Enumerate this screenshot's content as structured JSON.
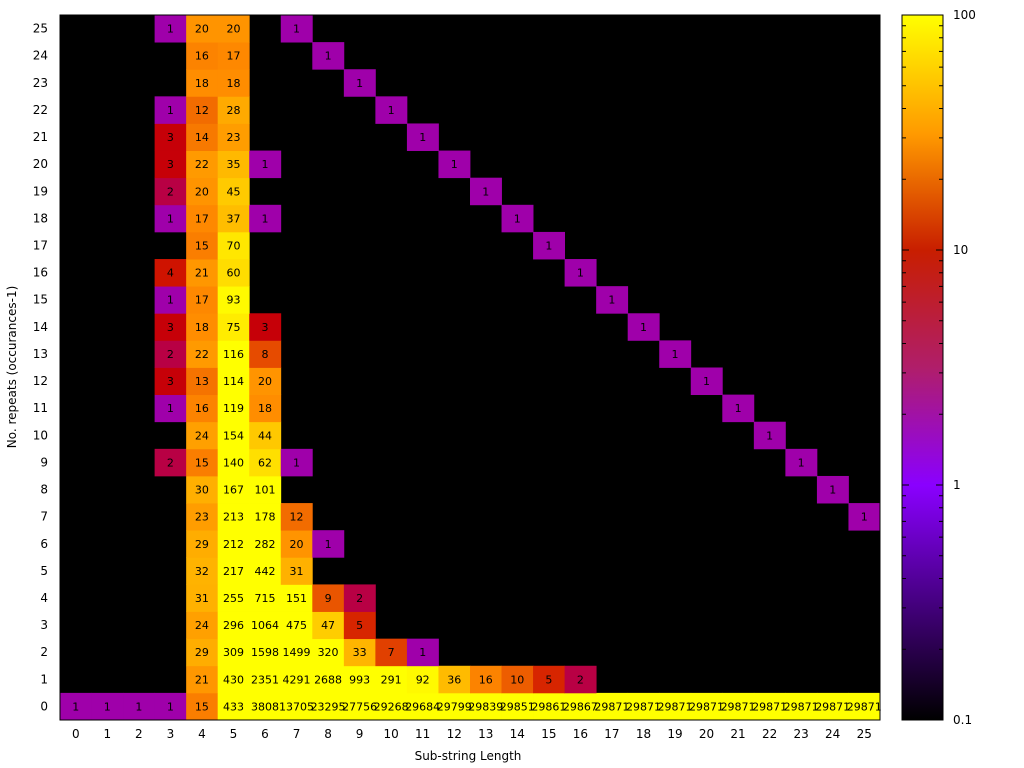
{
  "chart_data": {
    "type": "heatmap",
    "xlabel": "Sub-string Length",
    "ylabel": "No. repeats (occurances-1)",
    "x": [
      0,
      1,
      2,
      3,
      4,
      5,
      6,
      7,
      8,
      9,
      10,
      11,
      12,
      13,
      14,
      15,
      16,
      17,
      18,
      19,
      20,
      21,
      22,
      23,
      24,
      25
    ],
    "y": [
      0,
      1,
      2,
      3,
      4,
      5,
      6,
      7,
      8,
      9,
      10,
      11,
      12,
      13,
      14,
      15,
      16,
      17,
      18,
      19,
      20,
      21,
      22,
      23,
      24,
      25
    ],
    "x_tick_labels": [
      "0",
      "1",
      "2",
      "3",
      "4",
      "5",
      "6",
      "7",
      "8",
      "9",
      "10",
      "11",
      "12",
      "13",
      "14",
      "15",
      "16",
      "17",
      "18",
      "19",
      "20",
      "21",
      "22",
      "23",
      "24",
      "25"
    ],
    "y_tick_labels": [
      "0",
      "1",
      "2",
      "3",
      "4",
      "5",
      "6",
      "7",
      "8",
      "9",
      "10",
      "11",
      "12",
      "13",
      "14",
      "15",
      "16",
      "17",
      "18",
      "19",
      "20",
      "21",
      "22",
      "23",
      "24",
      "25"
    ],
    "color_scale": {
      "type": "log",
      "min": 0.1,
      "max": 100,
      "tick_labels": [
        "0.1",
        "1",
        "10",
        "100"
      ],
      "tick_values": [
        0.1,
        1,
        10,
        100
      ],
      "colors": [
        "#000000",
        "#8a00ff",
        "#c80000",
        "#ff8c00",
        "#ffff00"
      ],
      "empty_color": "#000000"
    },
    "cells": [
      {
        "x": 0,
        "y": 0,
        "label": "1"
      },
      {
        "x": 1,
        "y": 0,
        "label": "1"
      },
      {
        "x": 2,
        "y": 0,
        "label": "1"
      },
      {
        "x": 3,
        "y": 0,
        "label": "1"
      },
      {
        "x": 4,
        "y": 0,
        "label": "15"
      },
      {
        "x": 5,
        "y": 0,
        "label": "433"
      },
      {
        "x": 6,
        "y": 0,
        "label": "3808"
      },
      {
        "x": 7,
        "y": 0,
        "label": "13705"
      },
      {
        "x": 8,
        "y": 0,
        "label": "23295"
      },
      {
        "x": 9,
        "y": 0,
        "label": "27756"
      },
      {
        "x": 10,
        "y": 0,
        "label": "29268"
      },
      {
        "x": 11,
        "y": 0,
        "label": "29684"
      },
      {
        "x": 12,
        "y": 0,
        "label": "29799"
      },
      {
        "x": 13,
        "y": 0,
        "label": "29839"
      },
      {
        "x": 14,
        "y": 0,
        "label": "29851"
      },
      {
        "x": 15,
        "y": 0,
        "label": "29861"
      },
      {
        "x": 16,
        "y": 0,
        "label": "29867"
      },
      {
        "x": 17,
        "y": 0,
        "label": "29871"
      },
      {
        "x": 18,
        "y": 0,
        "label": "29871"
      },
      {
        "x": 19,
        "y": 0,
        "label": "29871"
      },
      {
        "x": 20,
        "y": 0,
        "label": "29871"
      },
      {
        "x": 21,
        "y": 0,
        "label": "29871"
      },
      {
        "x": 22,
        "y": 0,
        "label": "29871"
      },
      {
        "x": 23,
        "y": 0,
        "label": "29871"
      },
      {
        "x": 24,
        "y": 0,
        "label": "29871"
      },
      {
        "x": 25,
        "y": 0,
        "label": "29871"
      },
      {
        "x": 4,
        "y": 1,
        "label": "21"
      },
      {
        "x": 5,
        "y": 1,
        "label": "430"
      },
      {
        "x": 6,
        "y": 1,
        "label": "2351"
      },
      {
        "x": 7,
        "y": 1,
        "label": "4291"
      },
      {
        "x": 8,
        "y": 1,
        "label": "2688"
      },
      {
        "x": 9,
        "y": 1,
        "label": "993"
      },
      {
        "x": 10,
        "y": 1,
        "label": "291"
      },
      {
        "x": 11,
        "y": 1,
        "label": "92"
      },
      {
        "x": 12,
        "y": 1,
        "label": "36"
      },
      {
        "x": 13,
        "y": 1,
        "label": "16"
      },
      {
        "x": 14,
        "y": 1,
        "label": "10"
      },
      {
        "x": 15,
        "y": 1,
        "label": "5"
      },
      {
        "x": 16,
        "y": 1,
        "label": "2"
      },
      {
        "x": 4,
        "y": 2,
        "label": "29"
      },
      {
        "x": 5,
        "y": 2,
        "label": "309"
      },
      {
        "x": 6,
        "y": 2,
        "label": "1598"
      },
      {
        "x": 7,
        "y": 2,
        "label": "1499"
      },
      {
        "x": 8,
        "y": 2,
        "label": "320"
      },
      {
        "x": 9,
        "y": 2,
        "label": "33"
      },
      {
        "x": 10,
        "y": 2,
        "label": "7"
      },
      {
        "x": 11,
        "y": 2,
        "label": "1"
      },
      {
        "x": 4,
        "y": 3,
        "label": "24"
      },
      {
        "x": 5,
        "y": 3,
        "label": "296"
      },
      {
        "x": 6,
        "y": 3,
        "label": "1064"
      },
      {
        "x": 7,
        "y": 3,
        "label": "475"
      },
      {
        "x": 8,
        "y": 3,
        "label": "47"
      },
      {
        "x": 9,
        "y": 3,
        "label": "5"
      },
      {
        "x": 4,
        "y": 4,
        "label": "31"
      },
      {
        "x": 5,
        "y": 4,
        "label": "255"
      },
      {
        "x": 6,
        "y": 4,
        "label": "715"
      },
      {
        "x": 7,
        "y": 4,
        "label": "151"
      },
      {
        "x": 8,
        "y": 4,
        "label": "9"
      },
      {
        "x": 9,
        "y": 4,
        "label": "2"
      },
      {
        "x": 4,
        "y": 5,
        "label": "32"
      },
      {
        "x": 5,
        "y": 5,
        "label": "217"
      },
      {
        "x": 6,
        "y": 5,
        "label": "442"
      },
      {
        "x": 7,
        "y": 5,
        "label": "31"
      },
      {
        "x": 4,
        "y": 6,
        "label": "29"
      },
      {
        "x": 5,
        "y": 6,
        "label": "212"
      },
      {
        "x": 6,
        "y": 6,
        "label": "282"
      },
      {
        "x": 7,
        "y": 6,
        "label": "20"
      },
      {
        "x": 8,
        "y": 6,
        "label": "1"
      },
      {
        "x": 4,
        "y": 7,
        "label": "23"
      },
      {
        "x": 5,
        "y": 7,
        "label": "213"
      },
      {
        "x": 6,
        "y": 7,
        "label": "178"
      },
      {
        "x": 7,
        "y": 7,
        "label": "12"
      },
      {
        "x": 25,
        "y": 7,
        "label": "1"
      },
      {
        "x": 4,
        "y": 8,
        "label": "30"
      },
      {
        "x": 5,
        "y": 8,
        "label": "167"
      },
      {
        "x": 6,
        "y": 8,
        "label": "101"
      },
      {
        "x": 24,
        "y": 8,
        "label": "1"
      },
      {
        "x": 3,
        "y": 9,
        "label": "2"
      },
      {
        "x": 4,
        "y": 9,
        "label": "15"
      },
      {
        "x": 5,
        "y": 9,
        "label": "140"
      },
      {
        "x": 6,
        "y": 9,
        "label": "62"
      },
      {
        "x": 7,
        "y": 9,
        "label": "1"
      },
      {
        "x": 23,
        "y": 9,
        "label": "1"
      },
      {
        "x": 4,
        "y": 10,
        "label": "24"
      },
      {
        "x": 5,
        "y": 10,
        "label": "154"
      },
      {
        "x": 6,
        "y": 10,
        "label": "44"
      },
      {
        "x": 22,
        "y": 10,
        "label": "1"
      },
      {
        "x": 3,
        "y": 11,
        "label": "1"
      },
      {
        "x": 4,
        "y": 11,
        "label": "16"
      },
      {
        "x": 5,
        "y": 11,
        "label": "119"
      },
      {
        "x": 6,
        "y": 11,
        "label": "18"
      },
      {
        "x": 21,
        "y": 11,
        "label": "1"
      },
      {
        "x": 3,
        "y": 12,
        "label": "3"
      },
      {
        "x": 4,
        "y": 12,
        "label": "13"
      },
      {
        "x": 5,
        "y": 12,
        "label": "114"
      },
      {
        "x": 6,
        "y": 12,
        "label": "20"
      },
      {
        "x": 20,
        "y": 12,
        "label": "1"
      },
      {
        "x": 3,
        "y": 13,
        "label": "2"
      },
      {
        "x": 4,
        "y": 13,
        "label": "22"
      },
      {
        "x": 5,
        "y": 13,
        "label": "116"
      },
      {
        "x": 6,
        "y": 13,
        "label": "8"
      },
      {
        "x": 19,
        "y": 13,
        "label": "1"
      },
      {
        "x": 3,
        "y": 14,
        "label": "3"
      },
      {
        "x": 4,
        "y": 14,
        "label": "18"
      },
      {
        "x": 5,
        "y": 14,
        "label": "75"
      },
      {
        "x": 6,
        "y": 14,
        "label": "3"
      },
      {
        "x": 18,
        "y": 14,
        "label": "1"
      },
      {
        "x": 3,
        "y": 15,
        "label": "1"
      },
      {
        "x": 4,
        "y": 15,
        "label": "17"
      },
      {
        "x": 5,
        "y": 15,
        "label": "93"
      },
      {
        "x": 17,
        "y": 15,
        "label": "1"
      },
      {
        "x": 3,
        "y": 16,
        "label": "4"
      },
      {
        "x": 4,
        "y": 16,
        "label": "21"
      },
      {
        "x": 5,
        "y": 16,
        "label": "60"
      },
      {
        "x": 16,
        "y": 16,
        "label": "1"
      },
      {
        "x": 4,
        "y": 17,
        "label": "15"
      },
      {
        "x": 5,
        "y": 17,
        "label": "70"
      },
      {
        "x": 15,
        "y": 17,
        "label": "1"
      },
      {
        "x": 3,
        "y": 18,
        "label": "1"
      },
      {
        "x": 4,
        "y": 18,
        "label": "17"
      },
      {
        "x": 5,
        "y": 18,
        "label": "37"
      },
      {
        "x": 6,
        "y": 18,
        "label": "1"
      },
      {
        "x": 14,
        "y": 18,
        "label": "1"
      },
      {
        "x": 3,
        "y": 19,
        "label": "2"
      },
      {
        "x": 4,
        "y": 19,
        "label": "20"
      },
      {
        "x": 5,
        "y": 19,
        "label": "45"
      },
      {
        "x": 13,
        "y": 19,
        "label": "1"
      },
      {
        "x": 3,
        "y": 20,
        "label": "3"
      },
      {
        "x": 4,
        "y": 20,
        "label": "22"
      },
      {
        "x": 5,
        "y": 20,
        "label": "35"
      },
      {
        "x": 6,
        "y": 20,
        "label": "1"
      },
      {
        "x": 12,
        "y": 20,
        "label": "1"
      },
      {
        "x": 3,
        "y": 21,
        "label": "3"
      },
      {
        "x": 4,
        "y": 21,
        "label": "14"
      },
      {
        "x": 5,
        "y": 21,
        "label": "23"
      },
      {
        "x": 11,
        "y": 21,
        "label": "1"
      },
      {
        "x": 3,
        "y": 22,
        "label": "1"
      },
      {
        "x": 4,
        "y": 22,
        "label": "12"
      },
      {
        "x": 5,
        "y": 22,
        "label": "28"
      },
      {
        "x": 10,
        "y": 22,
        "label": "1"
      },
      {
        "x": 4,
        "y": 23,
        "label": "18"
      },
      {
        "x": 5,
        "y": 23,
        "label": "18"
      },
      {
        "x": 9,
        "y": 23,
        "label": "1"
      },
      {
        "x": 4,
        "y": 24,
        "label": "16"
      },
      {
        "x": 5,
        "y": 24,
        "label": "17"
      },
      {
        "x": 8,
        "y": 24,
        "label": "1"
      },
      {
        "x": 3,
        "y": 25,
        "label": "1"
      },
      {
        "x": 4,
        "y": 25,
        "label": "20"
      },
      {
        "x": 5,
        "y": 25,
        "label": "20"
      },
      {
        "x": 7,
        "y": 25,
        "label": "1"
      }
    ]
  }
}
